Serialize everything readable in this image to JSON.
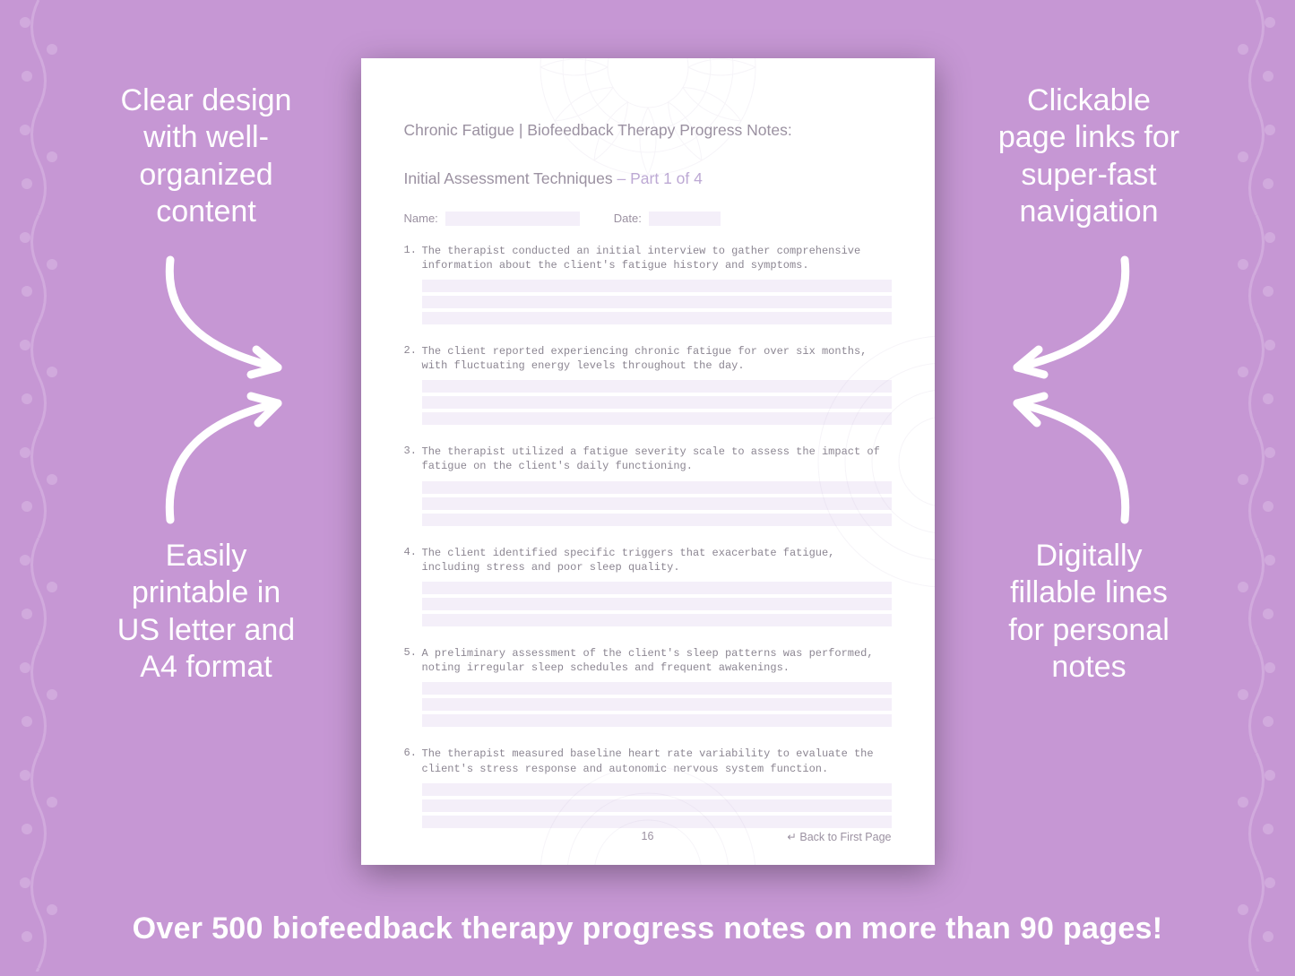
{
  "colors": {
    "bg": "#c697d4",
    "page_bg": "#ffffff",
    "fill_band": "#f4eff9",
    "heading_text": "#9b91a1",
    "part_text": "#bda9d4",
    "body_text": "#8c8692",
    "callout_text": "#ffffff",
    "banner_text": "#ffffff",
    "shadow": "rgba(0,0,0,0.35)",
    "floral": "#ddbfe6",
    "mandala": "#b8a9cc"
  },
  "typography": {
    "callout_fontsize": 34,
    "banner_fontsize": 34,
    "heading_fontsize": 17.5,
    "label_fontsize": 13,
    "body_mono_fontsize": 12,
    "footer_fontsize": 12.5,
    "mono_family": "Courier New"
  },
  "document": {
    "heading_line1": "Chronic Fatigue | Biofeedback Therapy Progress Notes:",
    "heading_line2_prefix": "Initial Assessment Techniques  ",
    "heading_line2_part": "– Part 1 of 4",
    "name_label": "Name:",
    "date_label": "Date:",
    "page_number": "16",
    "back_link": "↵ Back to First Page",
    "items": [
      {
        "n": "1.",
        "text": "The therapist conducted an initial interview to gather comprehensive information about the client's fatigue history and symptoms."
      },
      {
        "n": "2.",
        "text": "The client reported experiencing chronic fatigue for over six months, with fluctuating energy levels throughout the day."
      },
      {
        "n": "3.",
        "text": "The therapist utilized a fatigue severity scale to assess the impact of fatigue on the client's daily functioning."
      },
      {
        "n": "4.",
        "text": "The client identified specific triggers that exacerbate fatigue, including stress and poor sleep quality."
      },
      {
        "n": "5.",
        "text": "A preliminary assessment of the client's sleep patterns was performed, noting irregular sleep schedules and frequent awakenings."
      },
      {
        "n": "6.",
        "text": "The therapist measured baseline heart rate variability to evaluate the client's stress response and autonomic nervous system function."
      }
    ],
    "fill_lines_per_item": 3
  },
  "callouts": {
    "top_left": "Clear design\nwith well-\norganized\ncontent",
    "bottom_left": "Easily\nprintable in\nUS letter and\nA4 format",
    "top_right": "Clickable\npage links for\nsuper-fast\nnavigation",
    "bottom_right": "Digitally\nfillable lines\nfor personal\nnotes"
  },
  "banner": "Over 500 biofeedback therapy progress notes on more than 90 pages!"
}
